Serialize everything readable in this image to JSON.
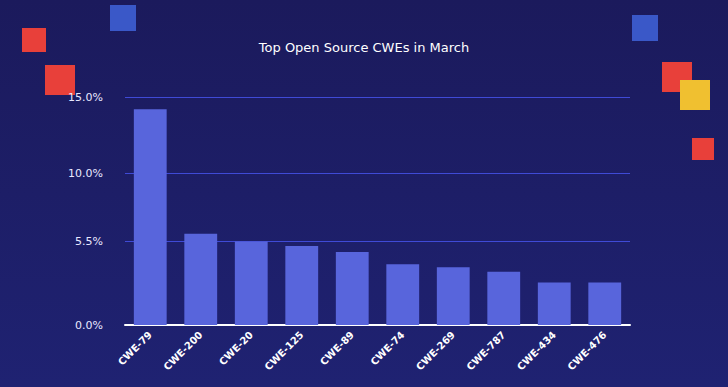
{
  "chart_data": {
    "type": "bar",
    "title": "Top Open Source CWEs in March",
    "categories": [
      "CWE-79",
      "CWE-200",
      "CWE-20",
      "CWE-125",
      "CWE-89",
      "CWE-74",
      "CWE-269",
      "CWE-787",
      "CWE-434",
      "CWE-476"
    ],
    "values": [
      14.2,
      6.0,
      5.5,
      5.2,
      4.8,
      4.0,
      3.8,
      3.5,
      2.8,
      2.8
    ],
    "color": "#5865dc",
    "ylim": [
      0,
      15
    ],
    "yticks": [
      {
        "value": 0,
        "label": "0.0%"
      },
      {
        "value": 5.5,
        "label": "5.5%"
      },
      {
        "value": 10,
        "label": "10.0%"
      },
      {
        "value": 15,
        "label": "15.0%"
      }
    ],
    "grid": true
  }
}
